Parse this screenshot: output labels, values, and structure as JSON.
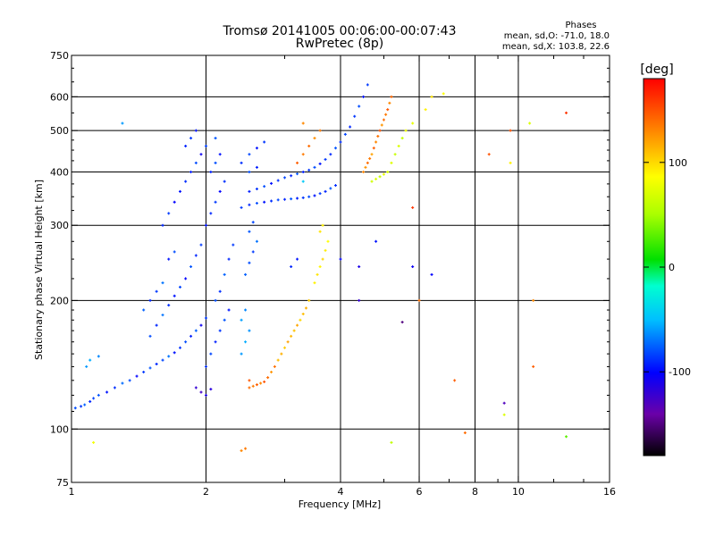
{
  "chart_data": {
    "type": "scatter",
    "title": "Tromsø 20141005 00:06:00-00:07:43",
    "subtitle": "RwPretec (8p)",
    "info": {
      "heading": "Phases",
      "line1": "mean, sd,O: -71.0, 18.0",
      "line2": "mean, sd,X: 103.8, 22.6"
    },
    "xlabel": "Frequency [MHz]",
    "ylabel": "Stationary phase Virtual Height [km]",
    "xscale": "log",
    "yscale": "log",
    "xlim": [
      1,
      16
    ],
    "ylim": [
      75,
      750
    ],
    "x_ticks": [
      1,
      2,
      4,
      6,
      8,
      10,
      16
    ],
    "x_tick_labels": [
      "1",
      "2",
      "4",
      "6",
      "8",
      "10",
      "16"
    ],
    "x_minor_ticks": [
      3,
      5,
      7,
      9,
      12,
      14
    ],
    "y_ticks": [
      75,
      100,
      200,
      300,
      400,
      500,
      600,
      750
    ],
    "y_tick_labels": [
      "75",
      "100",
      "200",
      "300",
      "400",
      "500",
      "600",
      "750"
    ],
    "y_gridlines": [
      100,
      200,
      300,
      400,
      500,
      600
    ],
    "x_gridlines": [
      2,
      4,
      6,
      8,
      10
    ],
    "grid": true,
    "colorbar": {
      "label": "[deg]",
      "range": [
        -180,
        180
      ],
      "ticks": [
        100,
        0,
        -100
      ],
      "tick_labels": [
        "100",
        "0",
        "-100"
      ],
      "placement": "right"
    },
    "series": [
      {
        "mode": "O",
        "points": [
          [
            1.02,
            112,
            -80
          ],
          [
            1.05,
            113,
            -85
          ],
          [
            1.07,
            114,
            -75
          ],
          [
            1.1,
            116,
            -90
          ],
          [
            1.12,
            118,
            -82
          ],
          [
            1.15,
            120,
            -78
          ],
          [
            1.2,
            122,
            -95
          ],
          [
            1.25,
            125,
            -88
          ],
          [
            1.3,
            128,
            -72
          ],
          [
            1.35,
            130,
            -80
          ],
          [
            1.4,
            133,
            -100
          ],
          [
            1.45,
            136,
            -85
          ],
          [
            1.5,
            139,
            -78
          ],
          [
            1.55,
            142,
            -90
          ],
          [
            1.6,
            145,
            -82
          ],
          [
            1.65,
            148,
            -70
          ],
          [
            1.7,
            151,
            -95
          ],
          [
            1.75,
            155,
            -86
          ],
          [
            1.8,
            160,
            -80
          ],
          [
            1.85,
            165,
            -92
          ],
          [
            1.9,
            170,
            -75
          ],
          [
            1.95,
            175,
            -105
          ],
          [
            2.0,
            182,
            -85
          ],
          [
            1.08,
            140,
            -60
          ],
          [
            1.1,
            145,
            -55
          ],
          [
            1.15,
            148,
            -65
          ],
          [
            1.5,
            165,
            -80
          ],
          [
            1.55,
            175,
            -90
          ],
          [
            1.6,
            185,
            -70
          ],
          [
            1.65,
            195,
            -88
          ],
          [
            1.7,
            205,
            -95
          ],
          [
            1.75,
            215,
            -82
          ],
          [
            1.8,
            225,
            -100
          ],
          [
            1.85,
            240,
            -78
          ],
          [
            1.9,
            255,
            -90
          ],
          [
            1.95,
            270,
            -85
          ],
          [
            1.45,
            190,
            -75
          ],
          [
            1.5,
            200,
            -90
          ],
          [
            1.55,
            210,
            -85
          ],
          [
            1.6,
            220,
            -70
          ],
          [
            1.65,
            250,
            -95
          ],
          [
            1.7,
            260,
            -80
          ],
          [
            1.6,
            300,
            -90
          ],
          [
            1.65,
            320,
            -85
          ],
          [
            1.7,
            340,
            -100
          ],
          [
            1.75,
            360,
            -95
          ],
          [
            1.8,
            380,
            -88
          ],
          [
            1.85,
            400,
            -92
          ],
          [
            1.9,
            420,
            -80
          ],
          [
            1.95,
            440,
            -105
          ],
          [
            1.8,
            460,
            -90
          ],
          [
            1.85,
            480,
            -85
          ],
          [
            1.9,
            500,
            -95
          ],
          [
            2.0,
            300,
            -95
          ],
          [
            2.05,
            320,
            -90
          ],
          [
            2.1,
            340,
            -85
          ],
          [
            2.15,
            360,
            -100
          ],
          [
            2.2,
            380,
            -88
          ],
          [
            2.05,
            400,
            -92
          ],
          [
            2.1,
            420,
            -80
          ],
          [
            2.15,
            440,
            -96
          ],
          [
            2.0,
            460,
            -84
          ],
          [
            2.1,
            480,
            -78
          ],
          [
            1.9,
            125,
            -120
          ],
          [
            1.95,
            122,
            -125
          ],
          [
            2.0,
            120,
            -110
          ],
          [
            2.05,
            124,
            -115
          ],
          [
            2.0,
            140,
            -88
          ],
          [
            2.05,
            150,
            -82
          ],
          [
            2.1,
            160,
            -92
          ],
          [
            2.15,
            170,
            -86
          ],
          [
            2.2,
            180,
            -78
          ],
          [
            2.25,
            190,
            -95
          ],
          [
            2.1,
            200,
            -80
          ],
          [
            2.15,
            210,
            -88
          ],
          [
            2.2,
            230,
            -74
          ],
          [
            2.25,
            250,
            -90
          ],
          [
            2.3,
            270,
            -85
          ],
          [
            2.4,
            330,
            -85
          ],
          [
            2.5,
            335,
            -90
          ],
          [
            2.6,
            338,
            -80
          ],
          [
            2.7,
            340,
            -95
          ],
          [
            2.8,
            342,
            -88
          ],
          [
            2.9,
            344,
            -82
          ],
          [
            3.0,
            345,
            -90
          ],
          [
            3.1,
            346,
            -78
          ],
          [
            3.2,
            347,
            -92
          ],
          [
            3.3,
            348,
            -86
          ],
          [
            3.4,
            350,
            -80
          ],
          [
            3.5,
            352,
            -95
          ],
          [
            3.6,
            356,
            -85
          ],
          [
            3.7,
            360,
            -90
          ],
          [
            3.8,
            366,
            -78
          ],
          [
            3.9,
            372,
            -88
          ],
          [
            2.5,
            360,
            -92
          ],
          [
            2.6,
            365,
            -86
          ],
          [
            2.7,
            370,
            -80
          ],
          [
            2.8,
            376,
            -95
          ],
          [
            2.9,
            382,
            -88
          ],
          [
            3.0,
            388,
            -82
          ],
          [
            3.1,
            392,
            -90
          ],
          [
            3.2,
            396,
            -78
          ],
          [
            3.3,
            400,
            -92
          ],
          [
            3.4,
            404,
            -86
          ],
          [
            3.5,
            410,
            -80
          ],
          [
            3.6,
            418,
            -95
          ],
          [
            3.7,
            428,
            -85
          ],
          [
            3.8,
            440,
            -90
          ],
          [
            3.9,
            455,
            -78
          ],
          [
            4.0,
            470,
            -88
          ],
          [
            4.1,
            490,
            -82
          ],
          [
            4.2,
            510,
            -90
          ],
          [
            4.3,
            540,
            -86
          ],
          [
            4.4,
            570,
            -80
          ],
          [
            4.5,
            600,
            -95
          ],
          [
            4.6,
            640,
            -85
          ],
          [
            2.4,
            420,
            -88
          ],
          [
            2.5,
            440,
            -82
          ],
          [
            2.6,
            455,
            -95
          ],
          [
            2.7,
            470,
            -86
          ],
          [
            2.5,
            400,
            -80
          ],
          [
            2.6,
            410,
            -92
          ],
          [
            2.45,
            230,
            -75
          ],
          [
            2.5,
            245,
            -80
          ],
          [
            2.55,
            260,
            -85
          ],
          [
            2.6,
            275,
            -70
          ],
          [
            2.5,
            290,
            -78
          ],
          [
            2.55,
            305,
            -82
          ],
          [
            2.4,
            150,
            -60
          ],
          [
            2.45,
            160,
            -55
          ],
          [
            2.5,
            170,
            -62
          ],
          [
            2.4,
            180,
            -58
          ],
          [
            2.45,
            190,
            -65
          ],
          [
            3.1,
            240,
            -90
          ],
          [
            3.2,
            250,
            -95
          ],
          [
            4.0,
            250,
            -100
          ],
          [
            4.4,
            240,
            -110
          ],
          [
            4.8,
            275,
            -95
          ],
          [
            5.8,
            240,
            -105
          ],
          [
            6.4,
            230,
            -100
          ],
          [
            9.3,
            115,
            -130
          ],
          [
            4.4,
            200,
            -120
          ],
          [
            5.5,
            178,
            -150
          ],
          [
            1.3,
            520,
            -60
          ],
          [
            3.3,
            380,
            -45
          ]
        ]
      },
      {
        "mode": "X",
        "points": [
          [
            2.5,
            125,
            140
          ],
          [
            2.55,
            126,
            135
          ],
          [
            2.6,
            127,
            145
          ],
          [
            2.65,
            128,
            130
          ],
          [
            2.7,
            129,
            150
          ],
          [
            2.75,
            132,
            140
          ],
          [
            2.8,
            136,
            125
          ],
          [
            2.85,
            140,
            138
          ],
          [
            2.5,
            130,
            148
          ],
          [
            2.9,
            145,
            110
          ],
          [
            2.95,
            150,
            115
          ],
          [
            3.0,
            155,
            105
          ],
          [
            3.05,
            160,
            120
          ],
          [
            3.1,
            165,
            112
          ],
          [
            3.15,
            170,
            108
          ],
          [
            3.2,
            175,
            118
          ],
          [
            3.25,
            180,
            100
          ],
          [
            3.3,
            186,
            110
          ],
          [
            3.35,
            192,
            115
          ],
          [
            3.4,
            200,
            105
          ],
          [
            3.5,
            220,
            90
          ],
          [
            3.55,
            230,
            95
          ],
          [
            3.6,
            240,
            88
          ],
          [
            3.65,
            250,
            100
          ],
          [
            3.7,
            262,
            92
          ],
          [
            3.75,
            275,
            85
          ],
          [
            3.6,
            290,
            95
          ],
          [
            3.65,
            300,
            90
          ],
          [
            3.3,
            440,
            135
          ],
          [
            3.4,
            460,
            140
          ],
          [
            3.5,
            480,
            128
          ],
          [
            3.6,
            500,
            135
          ],
          [
            3.2,
            420,
            145
          ],
          [
            3.3,
            520,
            130
          ],
          [
            4.5,
            400,
            130
          ],
          [
            4.55,
            410,
            125
          ],
          [
            4.6,
            420,
            140
          ],
          [
            4.65,
            430,
            135
          ],
          [
            4.7,
            440,
            120
          ],
          [
            4.75,
            455,
            145
          ],
          [
            4.8,
            470,
            130
          ],
          [
            4.85,
            485,
            138
          ],
          [
            4.9,
            500,
            150
          ],
          [
            4.95,
            515,
            125
          ],
          [
            5.0,
            530,
            140
          ],
          [
            5.05,
            545,
            135
          ],
          [
            5.1,
            560,
            148
          ],
          [
            5.15,
            580,
            130
          ],
          [
            5.2,
            600,
            142
          ],
          [
            4.7,
            380,
            65
          ],
          [
            4.8,
            385,
            70
          ],
          [
            4.9,
            390,
            60
          ],
          [
            5.0,
            395,
            75
          ],
          [
            5.1,
            400,
            68
          ],
          [
            5.2,
            420,
            72
          ],
          [
            5.3,
            440,
            62
          ],
          [
            5.4,
            460,
            70
          ],
          [
            5.5,
            480,
            60
          ],
          [
            5.6,
            500,
            80
          ],
          [
            5.8,
            520,
            75
          ],
          [
            6.2,
            560,
            90
          ],
          [
            6.4,
            600,
            95
          ],
          [
            6.8,
            610,
            85
          ],
          [
            7.2,
            130,
            145
          ],
          [
            7.6,
            98,
            140
          ],
          [
            8.6,
            440,
            150
          ],
          [
            9.6,
            500,
            150
          ],
          [
            9.6,
            420,
            90
          ],
          [
            10.8,
            200,
            130
          ],
          [
            10.8,
            140,
            145
          ],
          [
            10.6,
            520,
            70
          ],
          [
            12.8,
            550,
            160
          ],
          [
            1.12,
            93,
            80
          ],
          [
            2.4,
            89,
            130
          ],
          [
            2.45,
            90,
            135
          ],
          [
            5.2,
            93,
            60
          ],
          [
            9.3,
            108,
            70
          ],
          [
            12.8,
            96,
            30
          ],
          [
            5.8,
            330,
            160
          ],
          [
            6.0,
            200,
            140
          ]
        ]
      }
    ]
  }
}
